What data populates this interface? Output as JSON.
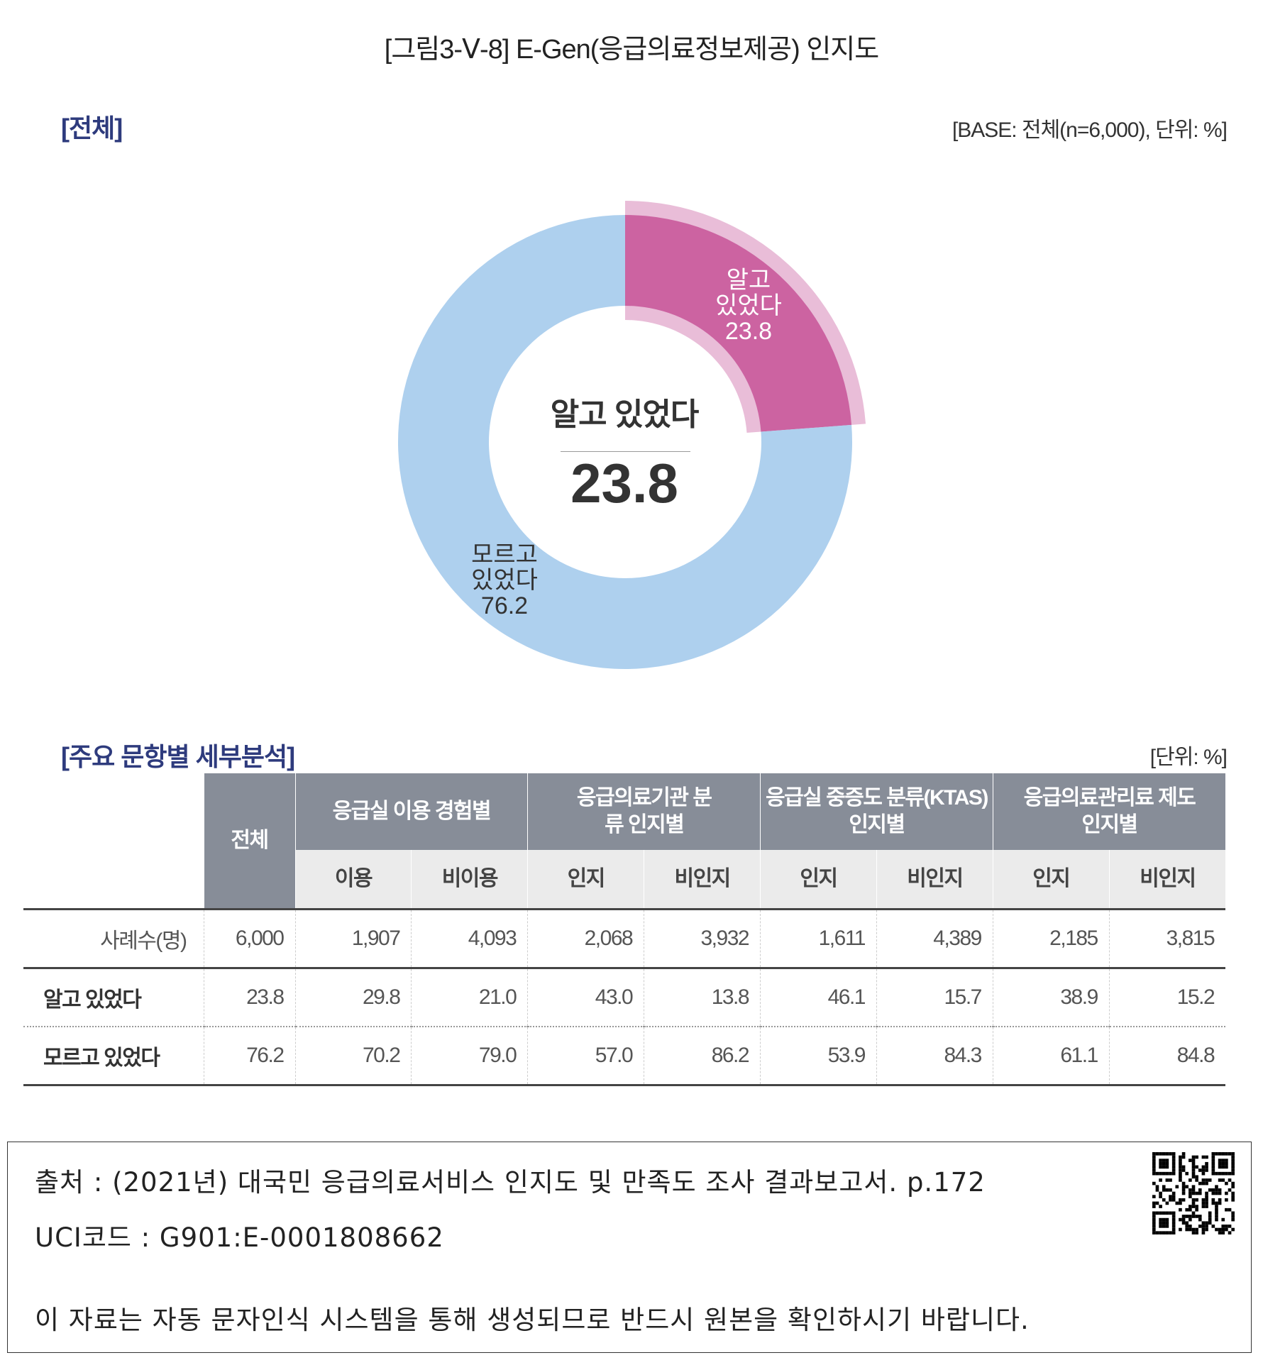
{
  "title": "[그림3-Ⅴ-8]  E-Gen(응급의료정보제공) 인지도",
  "overall": {
    "section_label": "[전체]",
    "base_note": "[BASE:  전체(n=6,000),  단위:  %]"
  },
  "chart_data": {
    "type": "pie",
    "subtype": "donut",
    "title": "E-Gen(응급의료정보제공) 인지도",
    "unit": "%",
    "slices": [
      {
        "label": "알고 있었다",
        "label_lines": [
          "알고",
          "있었다"
        ],
        "value": 23.8,
        "value_text": "23.8",
        "color": "#cc63a1",
        "highlight_color": "#e9bdd8"
      },
      {
        "label": "모르고 있었다",
        "label_lines": [
          "모르고",
          "있었다"
        ],
        "value": 76.2,
        "value_text": "76.2",
        "color": "#aed0ee"
      }
    ],
    "center_label": "알고 있었다",
    "center_value": "23.8"
  },
  "detail": {
    "section_label": "[주요  문항별  세부분석]",
    "unit_note": "[단위:  %]",
    "total_header": "전체",
    "groups": [
      {
        "label": "응급실 이용 경험별",
        "subs": [
          "이용",
          "비이용"
        ]
      },
      {
        "label": "응급의료기관 분류 인지별",
        "subs": [
          "인지",
          "비인지"
        ]
      },
      {
        "label": "응급실 중증도 분류(KTAS) 인지별",
        "subs": [
          "인지",
          "비인지"
        ]
      },
      {
        "label": "응급의료관리료 제도 인지별",
        "subs": [
          "인지",
          "비인지"
        ]
      }
    ],
    "rows": [
      {
        "label": "사례수(명)",
        "values": [
          "6,000",
          "1,907",
          "4,093",
          "2,068",
          "3,932",
          "1,611",
          "4,389",
          "2,185",
          "3,815"
        ]
      },
      {
        "label": "알고 있었다",
        "values": [
          "23.8",
          "29.8",
          "21.0",
          "43.0",
          "13.8",
          "46.1",
          "15.7",
          "38.9",
          "15.2"
        ]
      },
      {
        "label": "모르고 있었다",
        "values": [
          "76.2",
          "70.2",
          "79.0",
          "57.0",
          "86.2",
          "53.9",
          "84.3",
          "61.1",
          "84.8"
        ]
      }
    ]
  },
  "footer": {
    "source": "출처 : (2021년) 대국민 응급의료서비스 인지도 및 만족도 조사 결과보고서. p.172",
    "uci": "UCI코드 : G901:E-0001808662",
    "notice": "이 자료는 자동 문자인식 시스템을 통해 생성되므로 반드시 원본을 확인하시기 바랍니다."
  }
}
